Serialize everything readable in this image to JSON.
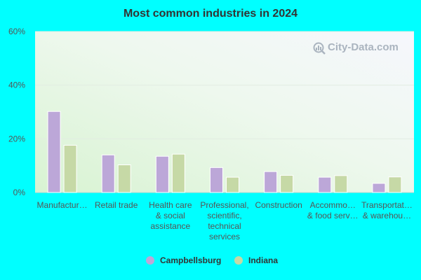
{
  "colors": {
    "background": "#00ffff",
    "series": [
      "#bca7d8",
      "#c6d9a6"
    ]
  },
  "watermark": "City-Data.com",
  "chart_data": {
    "type": "bar",
    "title": "Most common industries in 2024",
    "xlabel": "",
    "ylabel": "",
    "ylim": [
      0,
      60
    ],
    "yticks": [
      "0%",
      "20%",
      "40%",
      "60%"
    ],
    "ytick_values": [
      0,
      20,
      40,
      60
    ],
    "grid": true,
    "legend_position": "bottom",
    "categories": [
      "Manufactur…",
      "Retail trade",
      "Health care & social assistance",
      "Professional, scientific, technical services",
      "Construction",
      "Accommo… & food serv…",
      "Transportat… & warehou…"
    ],
    "category_lines": [
      [
        "Manufactur…"
      ],
      [
        "Retail trade"
      ],
      [
        "Health care",
        "& social",
        "assistance"
      ],
      [
        "Professional,",
        "scientific,",
        "technical",
        "services"
      ],
      [
        "Construction"
      ],
      [
        "Accommo…",
        "& food serv…"
      ],
      [
        "Transportat…",
        "& warehou…"
      ]
    ],
    "series": [
      {
        "name": "Campbellsburg",
        "values": [
          30.2,
          14.0,
          13.5,
          9.3,
          7.8,
          5.7,
          3.4
        ]
      },
      {
        "name": "Indiana",
        "values": [
          17.6,
          10.3,
          14.3,
          5.7,
          6.4,
          6.3,
          5.8
        ]
      }
    ]
  }
}
